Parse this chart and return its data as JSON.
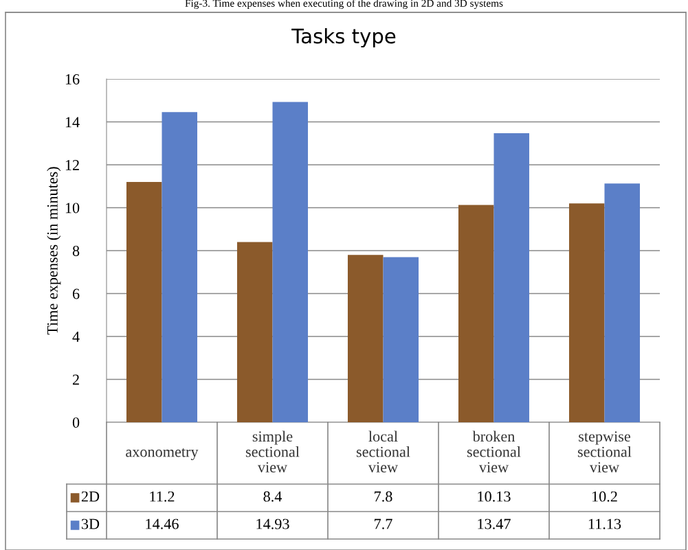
{
  "chart_data": {
    "type": "bar",
    "title": "Tasks type",
    "ylabel": "Time expenses (in minutes)",
    "annotations": [
      "Fig-3. Time expenses when executing of the drawing in 2D and 3D systems"
    ],
    "categories": [
      "axonometry",
      "simple sectional view",
      "local sectional view",
      "broken sectional view",
      "stepwise sectional view"
    ],
    "series": [
      {
        "name": "2D",
        "color": "#8b5a2b",
        "values": [
          11.2,
          8.4,
          7.8,
          10.13,
          10.2
        ]
      },
      {
        "name": "3D",
        "color": "#5b7fc8",
        "values": [
          14.46,
          14.93,
          7.7,
          13.47,
          11.13
        ]
      }
    ],
    "ylim": [
      0,
      16
    ],
    "yticks": [
      0,
      2,
      4,
      6,
      8,
      10,
      12,
      14,
      16
    ],
    "grid": "y",
    "data_labels": true,
    "legend": "bottom"
  }
}
